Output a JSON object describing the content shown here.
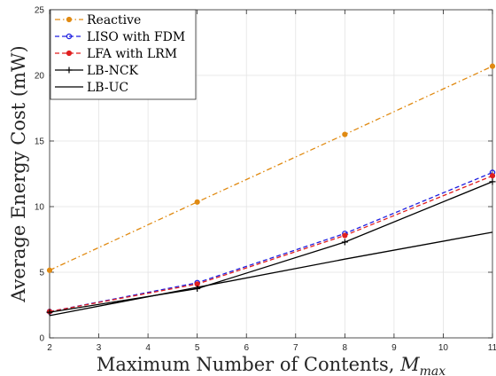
{
  "chart_data": {
    "type": "line",
    "x": [
      2,
      5,
      8,
      11
    ],
    "xlabel": "Maximum Number of Contents, ",
    "xlabel_math": "M",
    "xlabel_sub": "max",
    "ylabel": "Average Energy Cost (mW)",
    "xlim": [
      2,
      11
    ],
    "ylim": [
      0,
      25
    ],
    "xticks": [
      2,
      3,
      4,
      5,
      6,
      7,
      8,
      9,
      10,
      11
    ],
    "yticks": [
      0,
      5,
      10,
      15,
      20,
      25
    ],
    "grid": true,
    "legend_position": "top-left",
    "series": [
      {
        "name": "Reactive",
        "values": [
          5.15,
          10.35,
          15.5,
          20.7
        ],
        "color": "#e08a12",
        "dash": "dashdot",
        "marker": "dot"
      },
      {
        "name": "LISO with FDM",
        "values": [
          2.0,
          4.2,
          7.95,
          12.6
        ],
        "color": "#1f1fe0",
        "dash": "dashed",
        "marker": "circle"
      },
      {
        "name": "LFA with LRM",
        "values": [
          2.0,
          4.1,
          7.8,
          12.35
        ],
        "color": "#e01f1f",
        "dash": "dashed",
        "marker": "dot"
      },
      {
        "name": "LB-NCK",
        "values": [
          1.95,
          3.75,
          7.3,
          11.9
        ],
        "color": "#000000",
        "dash": "solid",
        "marker": "plus"
      },
      {
        "name": "LB-UC",
        "values": [
          1.7,
          3.85,
          6.0,
          8.05
        ],
        "color": "#000000",
        "dash": "solid",
        "marker": "none"
      }
    ]
  }
}
